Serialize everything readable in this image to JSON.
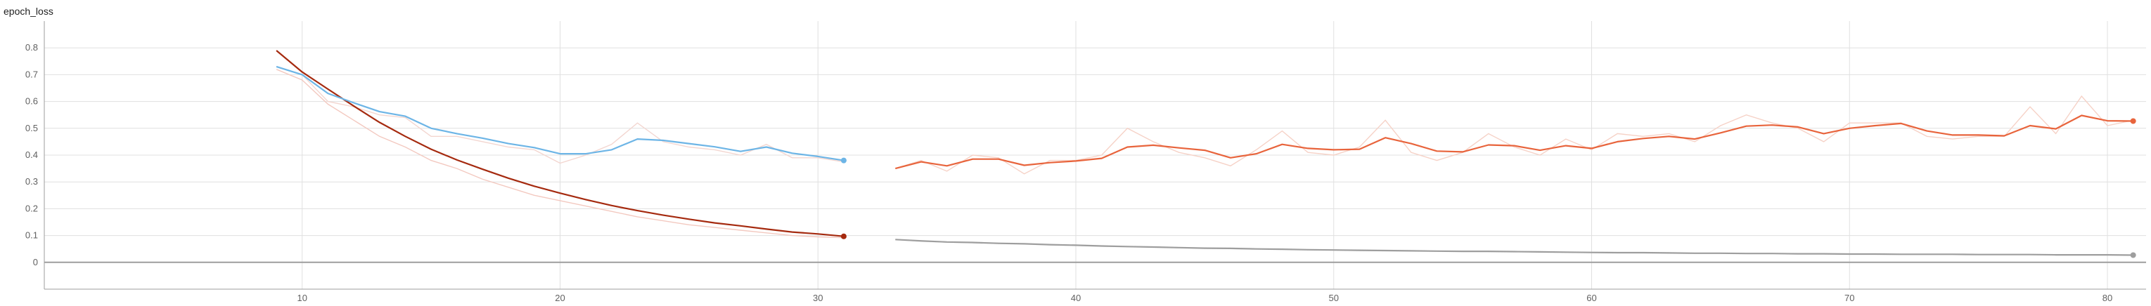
{
  "window": {
    "title": "epoch_loss"
  },
  "colors": {
    "grid": "#e0e0e0",
    "axis": "#9e9e9e",
    "train_a": "#a52a0f",
    "train_a_raw": "#f3c9c0",
    "val_a": "#6db5e6",
    "val_a_raw": "#f3d6d0",
    "train_b": "#9e9e9e",
    "train_b_raw": "#e3e3e3",
    "val_b": "#e8643c",
    "val_b_raw": "#f6d2c7"
  },
  "chart_data": {
    "type": "line",
    "title": "epoch_loss",
    "xlabel": "",
    "ylabel": "",
    "xlim": [
      0,
      81.5
    ],
    "ylim": [
      -0.1,
      0.9
    ],
    "x_ticks": [
      10,
      20,
      30,
      40,
      50,
      60,
      70,
      80
    ],
    "y_ticks": [
      0,
      0.1,
      0.2,
      0.3,
      0.4,
      0.5,
      0.6,
      0.7,
      0.8
    ],
    "grid": true,
    "legend": "none",
    "series": [
      {
        "color_key": "train_a",
        "raw_color_key": "train_a_raw",
        "x": [
          9,
          10,
          11,
          12,
          13,
          14,
          15,
          16,
          17,
          18,
          19,
          20,
          21,
          22,
          23,
          24,
          25,
          26,
          27,
          28,
          29,
          30,
          31
        ],
        "values": [
          0.79,
          0.71,
          0.646,
          0.583,
          0.522,
          0.47,
          0.422,
          0.382,
          0.347,
          0.314,
          0.284,
          0.258,
          0.234,
          0.212,
          0.193,
          0.176,
          0.161,
          0.147,
          0.136,
          0.124,
          0.113,
          0.106,
          0.097
        ],
        "raw": [
          0.72,
          0.68,
          0.59,
          0.53,
          0.47,
          0.43,
          0.38,
          0.35,
          0.31,
          0.28,
          0.25,
          0.23,
          0.21,
          0.19,
          0.17,
          0.155,
          0.14,
          0.13,
          0.12,
          0.11,
          0.1,
          0.095,
          0.092
        ]
      },
      {
        "color_key": "val_a",
        "raw_color_key": "val_a_raw",
        "x": [
          9,
          10,
          11,
          12,
          13,
          14,
          15,
          16,
          17,
          18,
          19,
          20,
          21,
          22,
          23,
          24,
          25,
          26,
          27,
          28,
          29,
          30,
          31
        ],
        "values": [
          0.73,
          0.7,
          0.63,
          0.595,
          0.562,
          0.545,
          0.5,
          0.48,
          0.463,
          0.443,
          0.428,
          0.405,
          0.405,
          0.42,
          0.46,
          0.455,
          0.443,
          0.431,
          0.414,
          0.43,
          0.407,
          0.395,
          0.38
        ],
        "raw": [
          0.73,
          0.7,
          0.6,
          0.58,
          0.55,
          0.54,
          0.47,
          0.47,
          0.45,
          0.43,
          0.42,
          0.37,
          0.4,
          0.44,
          0.52,
          0.45,
          0.43,
          0.42,
          0.4,
          0.44,
          0.39,
          0.39,
          0.375
        ]
      },
      {
        "color_key": "train_b",
        "raw_color_key": "train_b_raw",
        "x": [
          33,
          34,
          35,
          36,
          37,
          38,
          39,
          40,
          41,
          42,
          43,
          44,
          45,
          46,
          47,
          48,
          49,
          50,
          51,
          52,
          53,
          54,
          55,
          56,
          57,
          58,
          59,
          60,
          61,
          62,
          63,
          64,
          65,
          66,
          67,
          68,
          69,
          70,
          71,
          72,
          73,
          74,
          75,
          76,
          77,
          78,
          79,
          80,
          81
        ],
        "values": [
          0.085,
          0.08,
          0.076,
          0.074,
          0.071,
          0.069,
          0.066,
          0.064,
          0.061,
          0.059,
          0.057,
          0.055,
          0.053,
          0.052,
          0.05,
          0.049,
          0.047,
          0.046,
          0.045,
          0.044,
          0.043,
          0.042,
          0.041,
          0.041,
          0.04,
          0.039,
          0.038,
          0.037,
          0.036,
          0.036,
          0.035,
          0.034,
          0.034,
          0.033,
          0.033,
          0.032,
          0.032,
          0.031,
          0.031,
          0.03,
          0.03,
          0.03,
          0.029,
          0.029,
          0.029,
          0.028,
          0.028,
          0.028,
          0.027
        ],
        "raw": [
          0.085,
          0.078,
          0.075,
          0.073,
          0.07,
          0.069,
          0.065,
          0.063,
          0.06,
          0.058,
          0.057,
          0.054,
          0.053,
          0.051,
          0.05,
          0.049,
          0.047,
          0.046,
          0.044,
          0.044,
          0.042,
          0.042,
          0.041,
          0.04,
          0.04,
          0.039,
          0.038,
          0.036,
          0.036,
          0.036,
          0.035,
          0.034,
          0.034,
          0.033,
          0.033,
          0.032,
          0.032,
          0.031,
          0.031,
          0.03,
          0.03,
          0.03,
          0.029,
          0.029,
          0.029,
          0.028,
          0.028,
          0.028,
          0.027
        ]
      },
      {
        "color_key": "val_b",
        "raw_color_key": "val_b_raw",
        "x": [
          33,
          34,
          35,
          36,
          37,
          38,
          39,
          40,
          41,
          42,
          43,
          44,
          45,
          46,
          47,
          48,
          49,
          50,
          51,
          52,
          53,
          54,
          55,
          56,
          57,
          58,
          59,
          60,
          61,
          62,
          63,
          64,
          65,
          66,
          67,
          68,
          69,
          70,
          71,
          72,
          73,
          74,
          75,
          76,
          77,
          78,
          79,
          80,
          81
        ],
        "values": [
          0.35,
          0.375,
          0.36,
          0.385,
          0.385,
          0.362,
          0.372,
          0.378,
          0.388,
          0.43,
          0.437,
          0.427,
          0.418,
          0.39,
          0.405,
          0.44,
          0.425,
          0.42,
          0.422,
          0.465,
          0.443,
          0.415,
          0.412,
          0.438,
          0.435,
          0.418,
          0.435,
          0.425,
          0.45,
          0.462,
          0.47,
          0.46,
          0.483,
          0.508,
          0.512,
          0.505,
          0.48,
          0.5,
          0.51,
          0.518,
          0.49,
          0.475,
          0.475,
          0.472,
          0.51,
          0.498,
          0.548,
          0.528,
          0.527
        ],
        "raw": [
          0.35,
          0.38,
          0.34,
          0.4,
          0.39,
          0.33,
          0.38,
          0.38,
          0.4,
          0.5,
          0.45,
          0.41,
          0.39,
          0.36,
          0.42,
          0.49,
          0.41,
          0.4,
          0.43,
          0.53,
          0.41,
          0.38,
          0.41,
          0.48,
          0.43,
          0.4,
          0.46,
          0.42,
          0.48,
          0.47,
          0.48,
          0.45,
          0.51,
          0.55,
          0.52,
          0.5,
          0.45,
          0.52,
          0.52,
          0.52,
          0.47,
          0.46,
          0.47,
          0.47,
          0.58,
          0.48,
          0.62,
          0.51,
          0.53
        ]
      }
    ]
  }
}
